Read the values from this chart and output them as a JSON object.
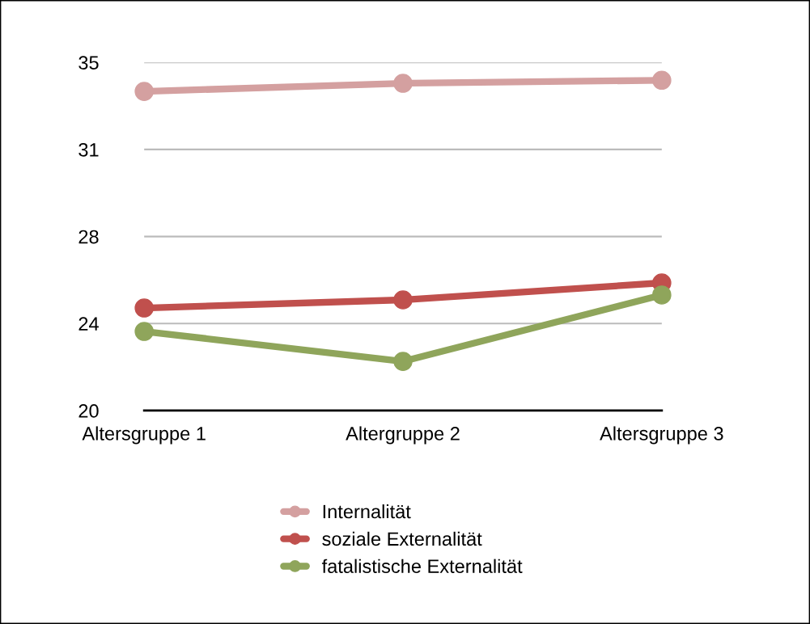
{
  "chart_data": {
    "type": "line",
    "categories": [
      "Altersgruppe 1",
      "Altergruppe 2",
      "Altersgruppe 3"
    ],
    "series": [
      {
        "name": "Internalität",
        "color": "#d4a0a0",
        "values": [
          33.75,
          34.1,
          34.23
        ]
      },
      {
        "name": "soziale Externalität",
        "color": "#c0504d",
        "values": [
          24.42,
          24.77,
          25.5
        ]
      },
      {
        "name": "fatalistische Externalität",
        "color": "#8fa55b",
        "values": [
          23.41,
          22.12,
          24.98
        ]
      }
    ],
    "ylim": [
      20,
      35
    ],
    "yticks": [
      20,
      {
        "value": 23.75,
        "label": "24"
      },
      {
        "value": 27.5,
        "label": "28"
      },
      {
        "value": 31.25,
        "label": "31"
      },
      35
    ],
    "grid": "y",
    "legend": "bottom",
    "marker": "circle",
    "line_style": "solid"
  }
}
